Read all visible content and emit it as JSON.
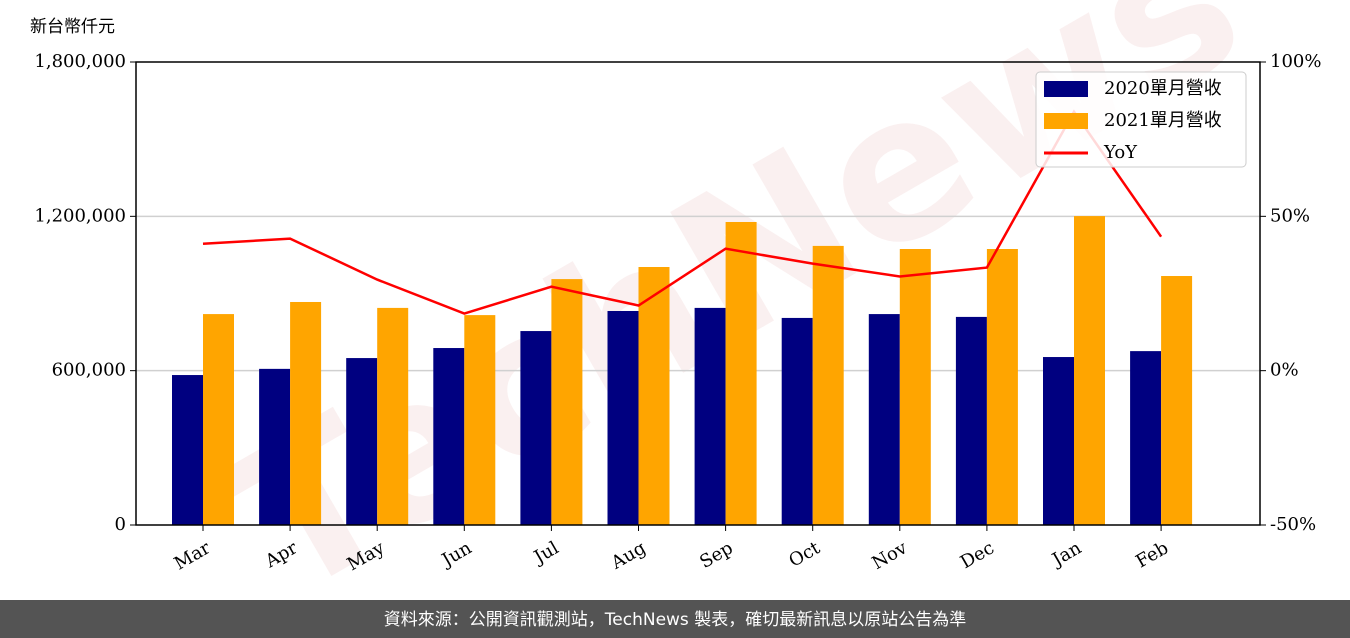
{
  "chart_data": {
    "type": "bar",
    "unit_label": "新台幣仟元",
    "watermark": "TechNews",
    "footer": "資料來源：公開資訊觀測站，TechNews 製表，確切最新訊息以原站公告為準",
    "categories": [
      "Mar",
      "Apr",
      "May",
      "Jun",
      "Jul",
      "Aug",
      "Sep",
      "Oct",
      "Nov",
      "Dec",
      "Jan",
      "Feb"
    ],
    "series": [
      {
        "name": "2020單月營收",
        "type": "bar",
        "color": "#000080",
        "values": [
          583000,
          607000,
          649000,
          688000,
          754000,
          832000,
          844000,
          805000,
          820000,
          809000,
          653000,
          676000
        ]
      },
      {
        "name": "2021單月營收",
        "type": "bar",
        "color": "#ffa500",
        "values": [
          820000,
          867000,
          844000,
          816000,
          956000,
          1003000,
          1178000,
          1085000,
          1073000,
          1073000,
          1201000,
          968000
        ]
      },
      {
        "name": "YoY",
        "type": "line",
        "axis": "y2",
        "color": "#ff0000",
        "values": [
          41.1,
          42.8,
          29.5,
          18.5,
          27.2,
          21.1,
          39.5,
          34.7,
          30.5,
          33.4,
          83.9,
          43.4
        ]
      }
    ],
    "ylim": [
      0,
      1800000
    ],
    "yticks": [
      0,
      {
        "value": 600000,
        "label": "600,000"
      },
      {
        "value": 1200000,
        "label": "1,200,000"
      },
      {
        "value": 1800000,
        "label": "1,800,000"
      }
    ],
    "y2lim": [
      -50,
      100
    ],
    "y2ticks": [
      {
        "value": -50,
        "label": "-50%"
      },
      {
        "value": 0,
        "label": "0%"
      },
      {
        "value": 50,
        "label": "50%"
      },
      {
        "value": 100,
        "label": "100%"
      }
    ],
    "grid": true,
    "legend": "upper right"
  }
}
